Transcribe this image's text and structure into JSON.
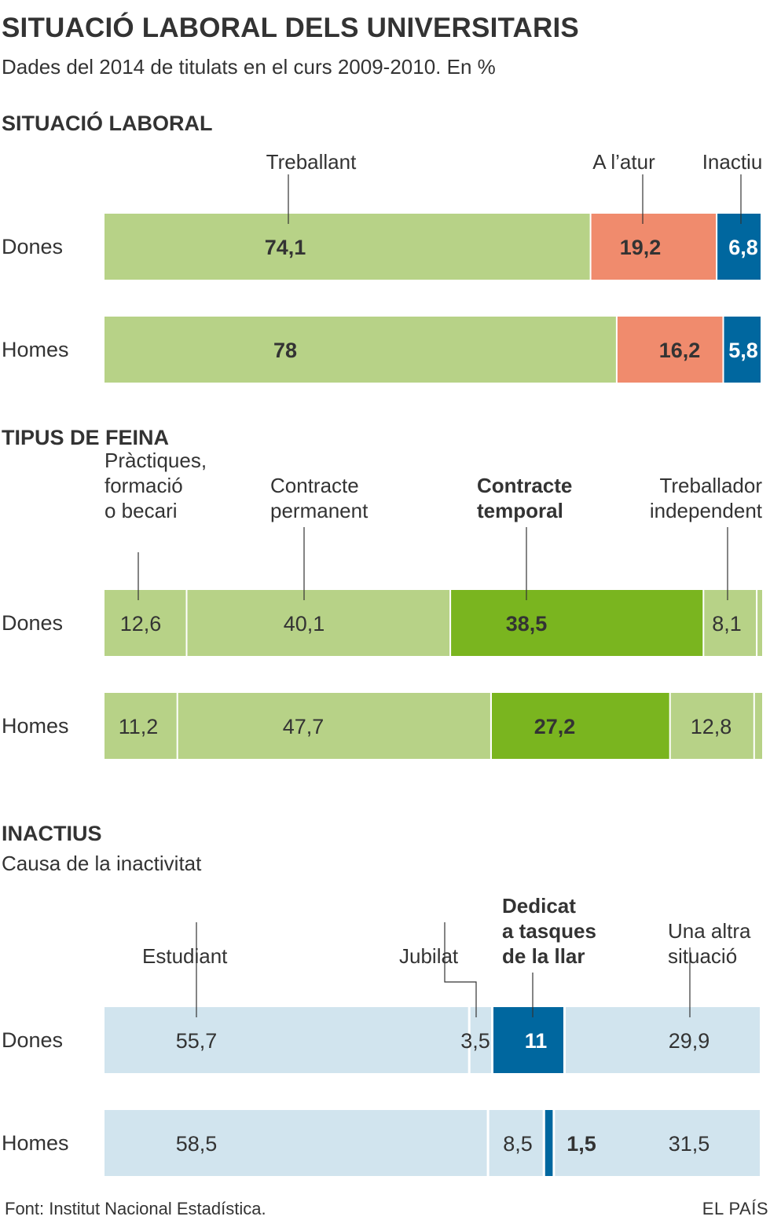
{
  "header": {
    "title": "SITUACIÓ LABORAL DELS UNIVERSITARIS",
    "subtitle": "Dades del 2014 de titulats en el curs 2009-2010. En %"
  },
  "footer": {
    "source": "Font: Institut Nacional Estadística.",
    "brand": "EL PAÍS"
  },
  "colors": {
    "green_light": "#b7d287",
    "green_dark": "#7ab51f",
    "salmon": "#f08b6d",
    "blue_dark": "#00679f",
    "blue_light": "#d1e4ee",
    "text": "#333333",
    "white": "#ffffff"
  },
  "chart_data": [
    {
      "type": "bar",
      "stacked": true,
      "orientation": "horizontal",
      "title": "SITUACIÓ LABORAL",
      "subtitle": "",
      "categories": [
        "Dones",
        "Homes"
      ],
      "series": [
        {
          "name": "Treballant",
          "values": [
            74.1,
            78
          ],
          "labels": [
            "74,1",
            "78"
          ],
          "color": "#b7d287",
          "text_color": "#333333",
          "bold": true
        },
        {
          "name": "A l’atur",
          "values": [
            19.2,
            16.2
          ],
          "labels": [
            "19,2",
            "16,2"
          ],
          "color": "#f08b6d",
          "text_color": "#333333",
          "bold": true
        },
        {
          "name": "Inactiu",
          "values": [
            6.8,
            5.8
          ],
          "labels": [
            "6,8",
            "5,8"
          ],
          "color": "#00679f",
          "text_color": "#ffffff",
          "bold": true
        }
      ]
    },
    {
      "type": "bar",
      "stacked": true,
      "orientation": "horizontal",
      "title": "TIPUS DE FEINA",
      "subtitle": "",
      "categories": [
        "Dones",
        "Homes"
      ],
      "series": [
        {
          "name": "Pràctiques, formació o becari",
          "name_lines": [
            "Pràctiques,",
            "formació",
            "o becari"
          ],
          "values": [
            12.6,
            11.2
          ],
          "labels": [
            "12,6",
            "11,2"
          ],
          "color": "#b7d287",
          "text_color": "#333333",
          "bold": false
        },
        {
          "name": "Contracte permanent",
          "name_lines": [
            "Contracte",
            "permanent"
          ],
          "values": [
            40.1,
            47.7
          ],
          "labels": [
            "40,1",
            "47,7"
          ],
          "color": "#b7d287",
          "text_color": "#333333",
          "bold": false
        },
        {
          "name": "Contracte temporal",
          "name_lines": [
            "Contracte",
            "temporal"
          ],
          "values": [
            38.5,
            27.2
          ],
          "labels": [
            "38,5",
            "27,2"
          ],
          "color": "#7ab51f",
          "text_color": "#333333",
          "bold": true
        },
        {
          "name": "Treballador independent",
          "name_lines": [
            "Treballador",
            "independent"
          ],
          "values": [
            8.1,
            12.8
          ],
          "labels": [
            "8,1",
            "12,8"
          ],
          "color": "#b7d287",
          "text_color": "#333333",
          "bold": false
        }
      ]
    },
    {
      "type": "bar",
      "stacked": true,
      "orientation": "horizontal",
      "title": "INACTIUS",
      "subtitle": "Causa de la inactivitat",
      "categories": [
        "Dones",
        "Homes"
      ],
      "series": [
        {
          "name": "Estudiant",
          "name_lines": [
            "Estudiant"
          ],
          "values": [
            55.7,
            58.5
          ],
          "labels": [
            "55,7",
            "58,5"
          ],
          "color": "#d1e4ee",
          "text_color": "#333333",
          "bold": false
        },
        {
          "name": "Jubilat",
          "name_lines": [
            "Jubilat"
          ],
          "values": [
            3.5,
            8.5
          ],
          "labels": [
            "3,5",
            "8,5"
          ],
          "color": "#d1e4ee",
          "text_color": "#333333",
          "bold": false
        },
        {
          "name": "Dedicat a tasques de la llar",
          "name_lines": [
            "Dedicat",
            "a tasques",
            "de la llar"
          ],
          "values": [
            11,
            1.5
          ],
          "labels": [
            "11",
            "1,5"
          ],
          "color": "#00679f",
          "text_color": "#ffffff",
          "bold": true
        },
        {
          "name": "Una altra situació",
          "name_lines": [
            "Una altra",
            "situació"
          ],
          "values": [
            29.9,
            31.5
          ],
          "labels": [
            "29,9",
            "31,5"
          ],
          "color": "#d1e4ee",
          "text_color": "#333333",
          "bold": false
        }
      ]
    }
  ]
}
